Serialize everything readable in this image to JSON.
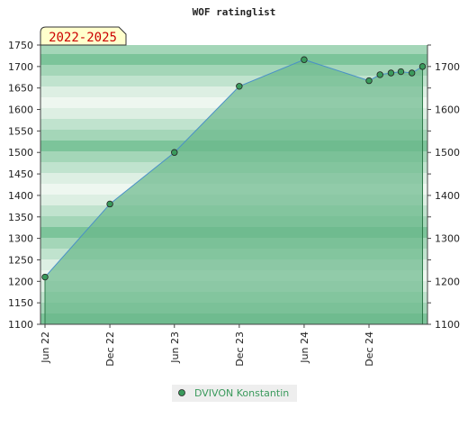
{
  "chart_data": {
    "type": "area",
    "title": "WOF ratinglist",
    "period_badge": "2022-2025",
    "grid": true,
    "legend_position": "bottom-center",
    "colors": {
      "line": "#4a90c8",
      "area": "#6ab88a",
      "marker": "#3a9a5c",
      "band_dark": "#7cc49a",
      "band_light": "#eef7f0",
      "badge_bg": "#ffffcc",
      "badge_text": "#cc0000",
      "legend_text": "#3a9a5c",
      "legend_bg": "#eeeeee"
    },
    "ylim": [
      1100,
      1750
    ],
    "y_ticks_left": [
      "1100",
      "1150",
      "1200",
      "1250",
      "1300",
      "1350",
      "1400",
      "1450",
      "1500",
      "1550",
      "1600",
      "1650",
      "1700",
      "1750"
    ],
    "y_ticks_right": [
      "1100",
      "1200",
      "1300",
      "1400",
      "1500",
      "1600",
      "1700"
    ],
    "x_ticks": [
      {
        "label": "Jun 22",
        "date": "2022-06-01"
      },
      {
        "label": "Dec 22",
        "date": "2022-12-01"
      },
      {
        "label": "Jun 23",
        "date": "2023-06-01"
      },
      {
        "label": "Dec 23",
        "date": "2023-12-01"
      },
      {
        "label": "Jun 24",
        "date": "2024-06-01"
      },
      {
        "label": "Dec 24",
        "date": "2024-12-01"
      }
    ],
    "xlim": [
      "2022-06-01",
      "2025-05-15"
    ],
    "series": [
      {
        "name": "DVIVON Konstantin",
        "points": [
          {
            "date": "2022-06-01",
            "value": 1210
          },
          {
            "date": "2022-12-01",
            "value": 1380
          },
          {
            "date": "2023-06-01",
            "value": 1500
          },
          {
            "date": "2023-12-01",
            "value": 1654
          },
          {
            "date": "2024-06-01",
            "value": 1716
          },
          {
            "date": "2024-12-01",
            "value": 1667
          },
          {
            "date": "2025-01-01",
            "value": 1681
          },
          {
            "date": "2025-02-01",
            "value": 1685
          },
          {
            "date": "2025-03-01",
            "value": 1688
          },
          {
            "date": "2025-04-01",
            "value": 1685
          },
          {
            "date": "2025-05-01",
            "value": 1700
          }
        ]
      }
    ]
  }
}
